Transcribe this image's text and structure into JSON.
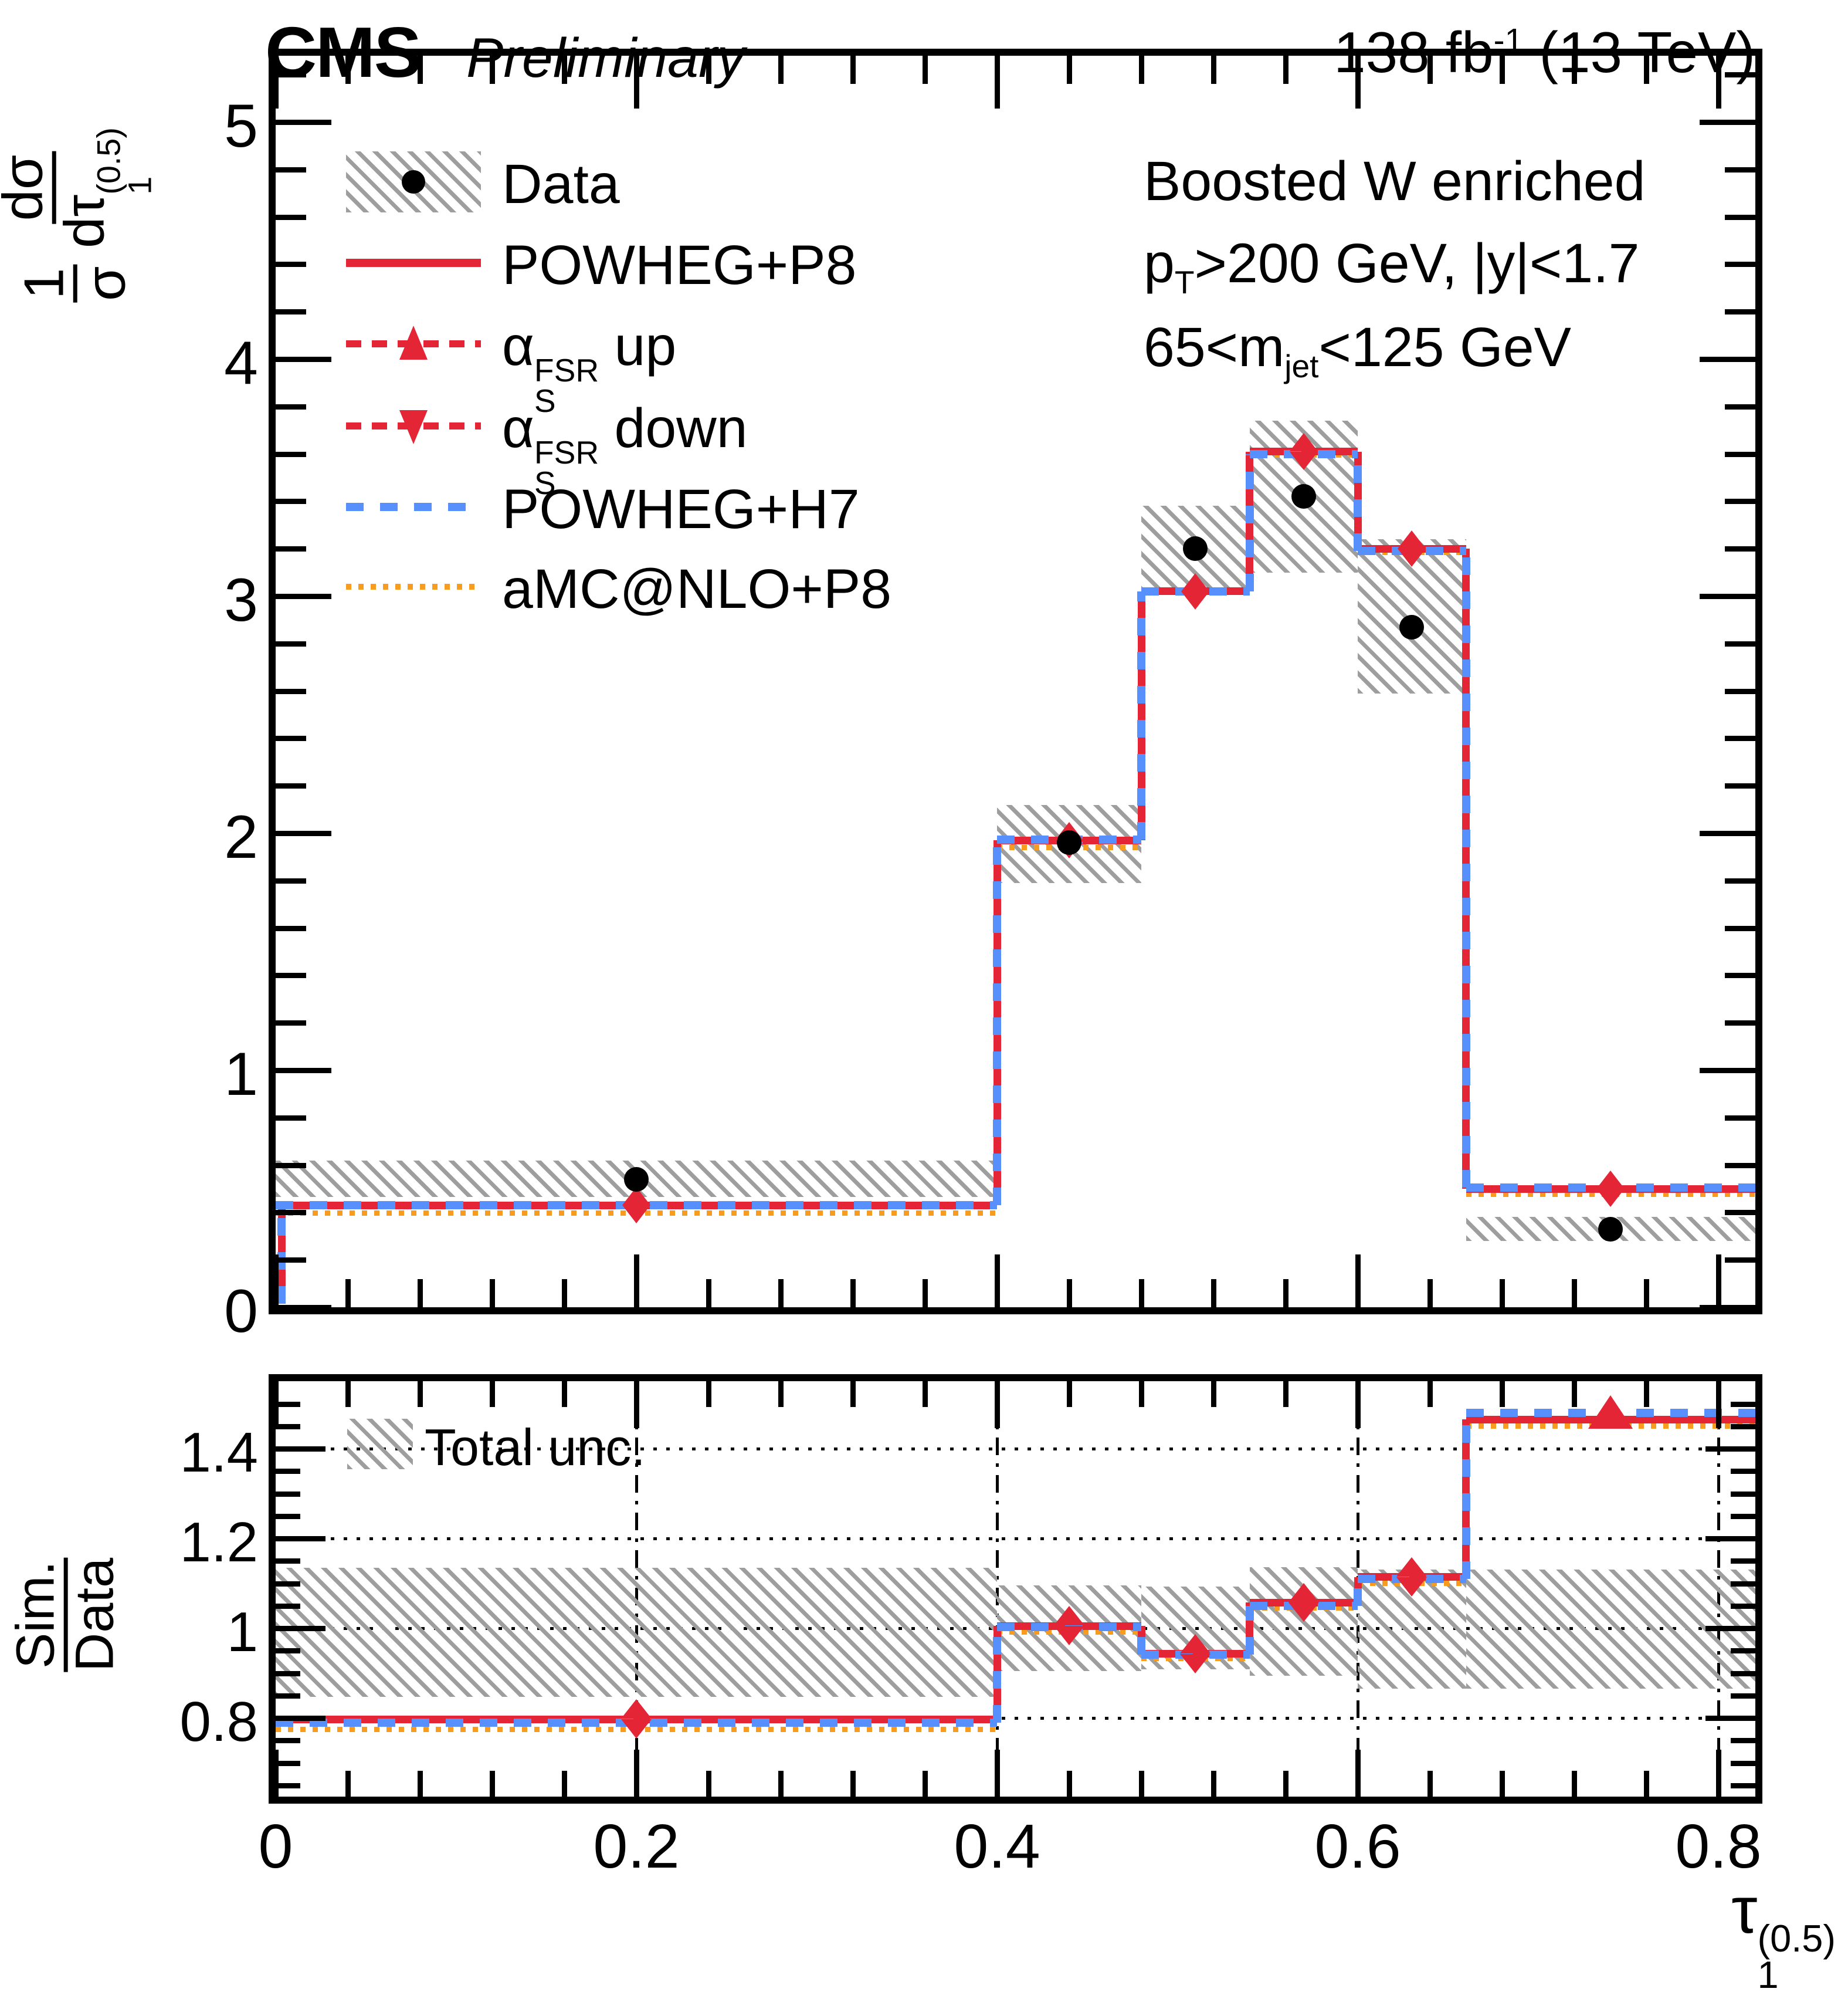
{
  "header": {
    "experiment": "CMS",
    "status": "Preliminary",
    "lumi": [
      {
        "t": "138 fb"
      },
      {
        "sup": "-1"
      },
      {
        "t": " (13 TeV)"
      }
    ]
  },
  "annotations": {
    "lines": [
      [
        {
          "t": "Boosted W enriched"
        }
      ],
      [
        {
          "t": "p"
        },
        {
          "sub": "T"
        },
        {
          "t": ">200 GeV, |y|<1.7"
        }
      ],
      [
        {
          "t": "65<m"
        },
        {
          "sub": "jet"
        },
        {
          "t": "<125 GeV"
        }
      ]
    ]
  },
  "legend": {
    "items": [
      {
        "id": "data",
        "marker": "data-band",
        "label": [
          {
            "t": "Data"
          }
        ]
      },
      {
        "id": "powheg-p8",
        "marker": "red-solid",
        "label": [
          {
            "t": "POWHEG+P8"
          }
        ]
      },
      {
        "id": "alphas-fsr-up",
        "marker": "red-dash-up",
        "label": [
          {
            "t": "α"
          },
          {
            "ss": {
              "sup": "FSR",
              "sub": "S"
            }
          },
          {
            "t": " up"
          }
        ]
      },
      {
        "id": "alphas-fsr-down",
        "marker": "red-dash-down",
        "label": [
          {
            "t": "α"
          },
          {
            "ss": {
              "sup": "FSR",
              "sub": "S"
            }
          },
          {
            "t": " down"
          }
        ]
      },
      {
        "id": "powheg-h7",
        "marker": "blue-dash",
        "label": [
          {
            "t": "POWHEG+H7"
          }
        ]
      },
      {
        "id": "amcnlo-p8",
        "marker": "orange-dot",
        "label": [
          {
            "t": "aMC@NLO+P8"
          }
        ]
      }
    ]
  },
  "ratio_legend": {
    "label": [
      {
        "t": "Total unc."
      }
    ]
  },
  "axes": {
    "main_y_title": [
      {
        "frac": {
          "num": [
            {
              "t": "1"
            }
          ],
          "den": [
            {
              "t": "σ"
            }
          ]
        }
      },
      {
        "t": " "
      },
      {
        "frac": {
          "num": [
            {
              "t": "dσ"
            }
          ],
          "den": [
            {
              "t": "dτ"
            },
            {
              "ss": {
                "sup": "(0.5)",
                "sub": "1"
              }
            }
          ]
        }
      }
    ],
    "ratio_y_title": [
      {
        "frac": {
          "num": [
            {
              "t": "Sim."
            }
          ],
          "den": [
            {
              "t": "Data"
            }
          ]
        }
      }
    ],
    "x_title": [
      {
        "t": "τ"
      },
      {
        "ss": {
          "sup": "(0.5)",
          "sub": "1"
        }
      }
    ],
    "main_y_ticks": {
      "values": [
        0,
        1,
        2,
        3,
        4,
        5
      ],
      "labels": [
        "0",
        "1",
        "2",
        "3",
        "4",
        "5"
      ]
    },
    "ratio_y_ticks": {
      "values": [
        0.8,
        1.0,
        1.2,
        1.4
      ],
      "labels": [
        "0.8",
        "1",
        "1.2",
        "1.4"
      ]
    },
    "x_ticks": {
      "values": [
        0,
        0.2,
        0.4,
        0.6,
        0.8
      ],
      "labels": [
        "0",
        "0.2",
        "0.4",
        "0.6",
        "0.8"
      ]
    }
  },
  "colors": {
    "red": "#e42536",
    "blue": "#5790fc",
    "orange": "#f89c20",
    "band_gray": "#9e9e9e",
    "black": "#000000"
  },
  "chart_data": [
    {
      "type": "bar",
      "panel": "main",
      "title": "CMS Preliminary, 138 fb-1 (13 TeV), boosted W enriched region",
      "xlabel": "tau_1^(0.5)",
      "ylabel": "(1/sigma) dsigma/dtau_1^(0.5)",
      "bin_edges": [
        0,
        0.4,
        0.48,
        0.54,
        0.6,
        0.66,
        0.82
      ],
      "bin_centers": [
        0.2,
        0.44,
        0.51,
        0.57,
        0.63,
        0.74
      ],
      "series": [
        {
          "name": "POWHEG+P8",
          "style": "red-solid",
          "values": [
            0.43,
            1.97,
            3.02,
            3.61,
            3.2,
            0.5
          ]
        },
        {
          "name": "alphaS FSR up",
          "style": "red-dash-up",
          "values": [
            0.435,
            1.98,
            3.03,
            3.63,
            3.22,
            0.503
          ]
        },
        {
          "name": "alphaS FSR down",
          "style": "red-dash-down",
          "values": [
            0.425,
            1.962,
            3.012,
            3.598,
            3.19,
            0.497
          ]
        },
        {
          "name": "POWHEG+H7",
          "style": "blue-dash",
          "values": [
            0.43,
            1.972,
            3.02,
            3.6,
            3.19,
            0.505
          ]
        },
        {
          "name": "aMC@NLO+P8",
          "style": "orange-dot",
          "values": [
            0.412,
            1.955,
            3.03,
            3.61,
            3.2,
            0.492
          ]
        }
      ],
      "data_points": {
        "x": [
          0.2,
          0.44,
          0.51,
          0.57,
          0.63,
          0.74
        ],
        "y": [
          0.54,
          1.96,
          3.2,
          3.42,
          2.87,
          0.33
        ],
        "total_unc_lo": [
          0.465,
          1.79,
          3.02,
          3.1,
          2.59,
          0.28
        ],
        "total_unc_hi": [
          0.62,
          2.12,
          3.38,
          3.74,
          3.24,
          0.38
        ]
      },
      "xlim": [
        0,
        0.8206
      ],
      "ylim": [
        0,
        5.28
      ],
      "grid": false
    },
    {
      "type": "ratio",
      "panel": "ratio",
      "ylabel": "Sim./Data",
      "bin_edges": [
        0,
        0.4,
        0.48,
        0.54,
        0.6,
        0.66,
        0.82
      ],
      "bin_centers": [
        0.2,
        0.44,
        0.51,
        0.57,
        0.63,
        0.74
      ],
      "series": [
        {
          "name": "POWHEG+P8 / Data",
          "style": "red-solid",
          "values": [
            0.797,
            1.005,
            0.943,
            1.057,
            1.114,
            1.465
          ]
        },
        {
          "name": "alphaS FSR up / Data",
          "style": "red-dash-up",
          "values": [
            0.803,
            1.01,
            0.947,
            1.062,
            1.12,
            1.47
          ]
        },
        {
          "name": "alphaS FSR down / Data",
          "style": "red-dash-down",
          "values": [
            0.791,
            1.0,
            0.939,
            1.052,
            1.108,
            1.458
          ]
        },
        {
          "name": "POWHEG+H7 / Data",
          "style": "blue-dash",
          "values": [
            0.79,
            1.002,
            0.941,
            1.05,
            1.11,
            1.48
          ]
        },
        {
          "name": "aMC@NLO+P8 / Data",
          "style": "orange-dot",
          "values": [
            0.782,
            1.0,
            0.94,
            1.053,
            1.108,
            1.458
          ]
        }
      ],
      "total_unc_lo": [
        0.847,
        0.905,
        0.909,
        0.894,
        0.865,
        0.866
      ],
      "total_unc_hi": [
        1.135,
        1.096,
        1.093,
        1.136,
        1.131,
        1.131
      ],
      "gridlines_y": [
        0.8,
        1.0,
        1.2,
        1.4
      ],
      "gridlines_x": [
        0.2,
        0.4,
        0.6,
        0.8
      ],
      "xlim": [
        0,
        0.8206
      ],
      "ylim": [
        0.617,
        1.551
      ],
      "grid": true
    }
  ]
}
